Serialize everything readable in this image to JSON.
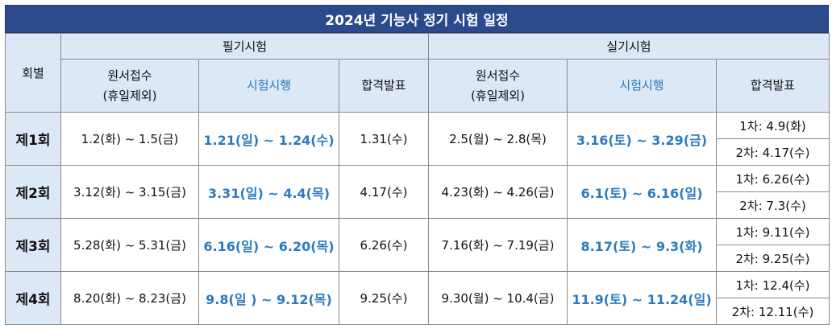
{
  "title": "2024년 기능사 정기 시험 일정",
  "headers": {
    "round": "회별",
    "written": "필기시험",
    "practical": "실기시험",
    "application": "원서접수",
    "application_note": "(휴일제외)",
    "exam": "시험시행",
    "result": "합격발표"
  },
  "rows": [
    {
      "round": "제1회",
      "written_app": "1.2(화) ~ 1.5(금)",
      "written_exam": "1.21(일) ~ 1.24(수)",
      "written_result": "1.31(수)",
      "practical_app": "2.5(월) ~ 2.8(목)",
      "practical_exam": "3.16(토) ~ 3.29(금)",
      "result1": "1차: 4.9(화)",
      "result2": "2차: 4.17(수)"
    },
    {
      "round": "제2회",
      "written_app": "3.12(화) ~ 3.15(금)",
      "written_exam": "3.31(일) ~ 4.4(목)",
      "written_result": "4.17(수)",
      "practical_app": "4.23(화) ~ 4.26(금)",
      "practical_exam": "6.1(토) ~ 6.16(일)",
      "result1": "1차: 6.26(수)",
      "result2": "2차: 7.3(수)"
    },
    {
      "round": "제3회",
      "written_app": "5.28(화) ~ 5.31(금)",
      "written_exam": "6.16(일) ~ 6.20(목)",
      "written_result": "6.26(수)",
      "practical_app": "7.16(화) ~ 7.19(금)",
      "practical_exam": "8.17(토) ~ 9.3(화)",
      "result1": "1차: 9.11(수)",
      "result2": "2차: 9.25(수)"
    },
    {
      "round": "제4회",
      "written_app": "8.20(화) ~ 8.23(금)",
      "written_exam": "9.8(일 ) ~ 9.12(목)",
      "written_result": "9.25(수)",
      "practical_app": "9.30(월) ~ 10.4(금)",
      "practical_exam": "11.9(토) ~ 11.24(일)",
      "result1": "1차: 12.4(수)",
      "result2": "2차: 12.11(수)"
    }
  ]
}
